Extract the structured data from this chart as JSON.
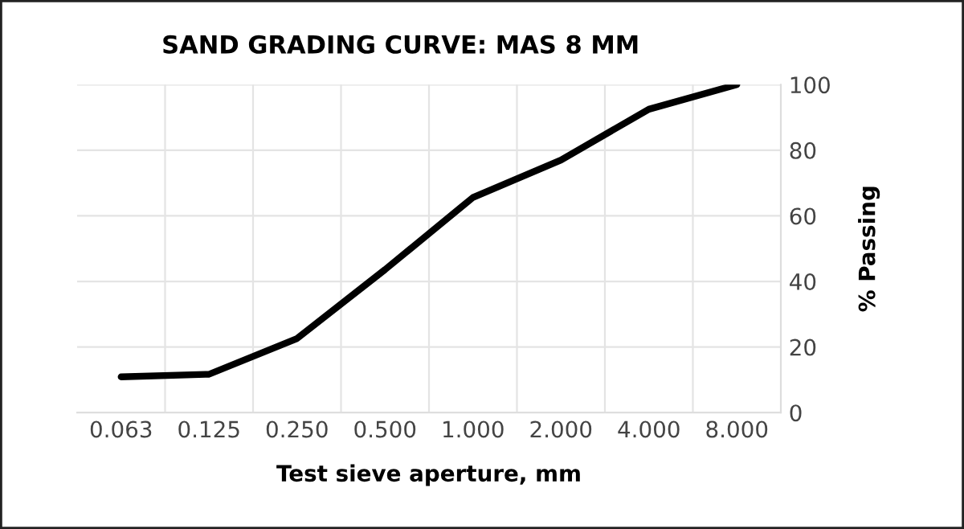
{
  "chart_data": {
    "type": "line",
    "title": "SAND GRADING CURVE: MAS 8 MM",
    "xlabel": "Test sieve aperture, mm",
    "ylabel": "% Passing",
    "categories": [
      "0.063",
      "0.125",
      "0.250",
      "0.500",
      "1.000",
      "2.000",
      "4.000",
      "8.000"
    ],
    "series": [
      {
        "color": "#000000",
        "values": [
          10.9,
          11.7,
          22.6,
          43.6,
          65.6,
          77,
          92.5,
          100
        ]
      }
    ],
    "ylim": [
      0,
      100
    ],
    "yticks": [
      0,
      20,
      40,
      60,
      80,
      100
    ],
    "grid": true,
    "marker": "none",
    "line_style": "solid",
    "legend": false
  }
}
